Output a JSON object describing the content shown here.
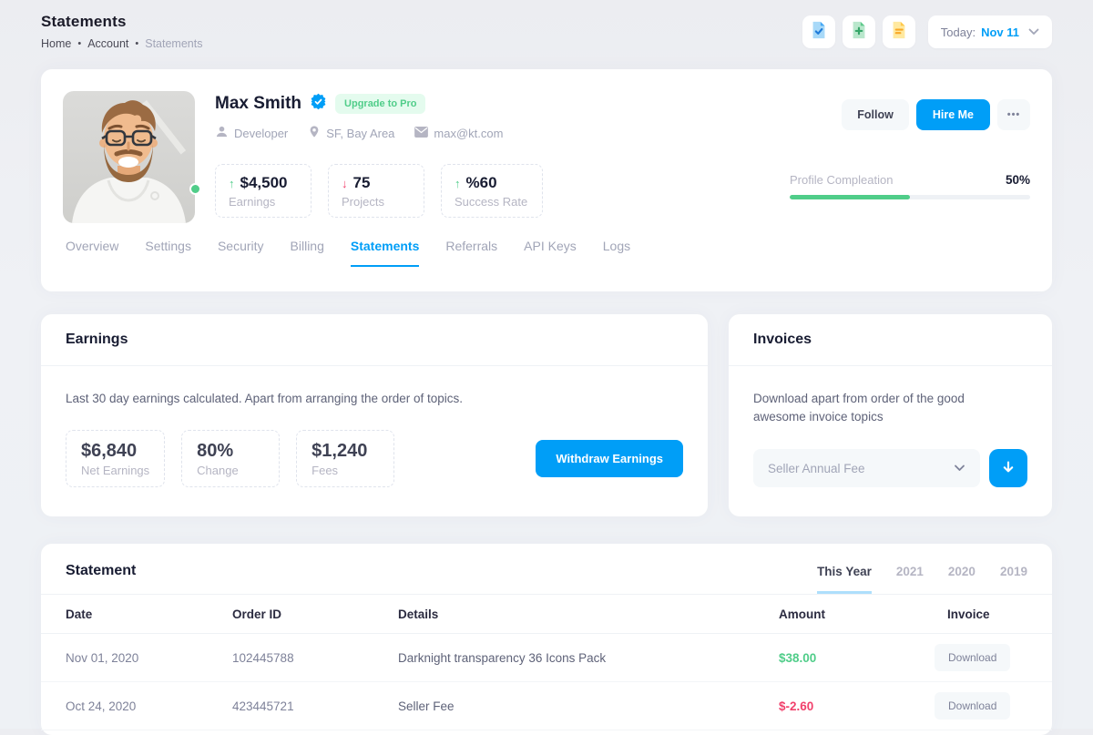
{
  "colors": {
    "accent": "#009ef7",
    "green": "#50cd89",
    "red": "#f1416c"
  },
  "header": {
    "title": "Statements",
    "separator": "•",
    "breadcrumb": [
      {
        "label": "Home"
      },
      {
        "label": "Account"
      },
      {
        "label": "Statements"
      }
    ],
    "action_icons": [
      "file-check-icon",
      "file-plus-icon",
      "file-lines-icon"
    ],
    "date_label": "Today:",
    "date_value": "Nov 11"
  },
  "profile": {
    "name": "Max Smith",
    "verified_icon": "verified-badge-icon",
    "badge": "Upgrade to Pro",
    "meta": [
      {
        "icon": "user-icon",
        "label": "Developer"
      },
      {
        "icon": "map-pin-icon",
        "label": "SF, Bay Area"
      },
      {
        "icon": "mail-icon",
        "label": "max@kt.com"
      }
    ],
    "stats": [
      {
        "trend": "up",
        "arrow": "↑",
        "value": "$4,500",
        "label": "Earnings"
      },
      {
        "trend": "down",
        "arrow": "↓",
        "value": "75",
        "label": "Projects"
      },
      {
        "trend": "up",
        "arrow": "↑",
        "value": "%60",
        "label": "Success Rate"
      }
    ],
    "actions": {
      "follow": "Follow",
      "hire": "Hire Me",
      "more": "•••"
    },
    "progress": {
      "label": "Profile Compleation",
      "value": "50%",
      "percent": 50
    }
  },
  "tabs": [
    {
      "label": "Overview"
    },
    {
      "label": "Settings"
    },
    {
      "label": "Security"
    },
    {
      "label": "Billing"
    },
    {
      "label": "Statements",
      "active": true
    },
    {
      "label": "Referrals"
    },
    {
      "label": "API Keys"
    },
    {
      "label": "Logs"
    }
  ],
  "earnings": {
    "title": "Earnings",
    "description": "Last 30 day earnings calculated. Apart from arranging the order of topics.",
    "stats": [
      {
        "value": "$6,840",
        "label": "Net Earnings"
      },
      {
        "value": "80%",
        "label": "Change"
      },
      {
        "value": "$1,240",
        "label": "Fees"
      }
    ],
    "cta": "Withdraw Earnings"
  },
  "invoices": {
    "title": "Invoices",
    "description": "Download apart from order of the good awesome invoice topics",
    "select_value": "Seller Annual Fee",
    "download_icon": "arrow-down-icon"
  },
  "statement": {
    "title": "Statement",
    "year_tabs": [
      {
        "label": "This Year",
        "active": true
      },
      {
        "label": "2021"
      },
      {
        "label": "2020"
      },
      {
        "label": "2019"
      }
    ],
    "columns": [
      "Date",
      "Order ID",
      "Details",
      "Amount",
      "Invoice"
    ],
    "rows": [
      {
        "date": "Nov 01, 2020",
        "order_id": "102445788",
        "details": "Darknight transparency 36 Icons Pack",
        "amount": "$38.00",
        "amount_color": "green",
        "invoice": "Download"
      },
      {
        "date": "Oct 24, 2020",
        "order_id": "423445721",
        "details": "Seller Fee",
        "amount": "$-2.60",
        "amount_color": "red",
        "invoice": "Download"
      }
    ]
  }
}
